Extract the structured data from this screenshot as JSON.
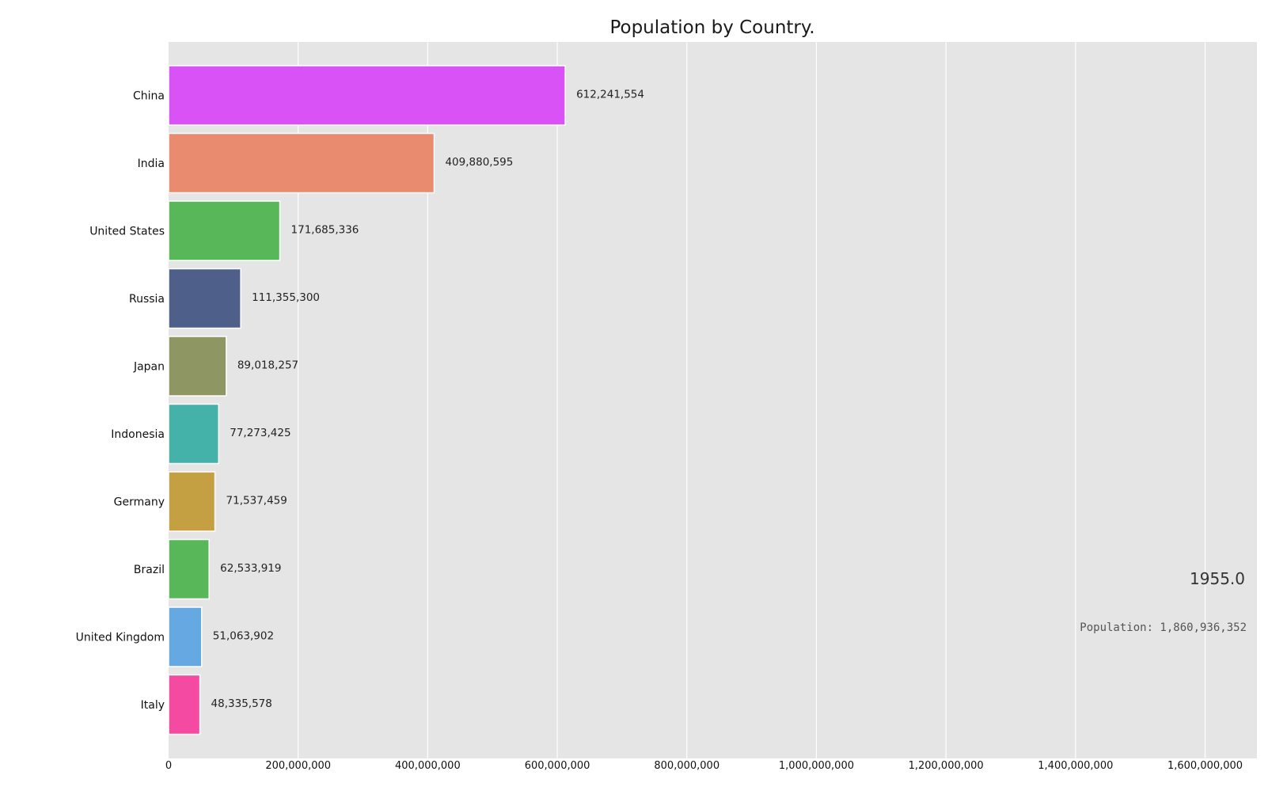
{
  "chart_data": {
    "type": "bar",
    "orientation": "horizontal",
    "title": "Population by Country.",
    "xlabel": "",
    "ylabel": "",
    "xlim": [
      0,
      1680000000
    ],
    "x_ticks": [
      0,
      200000000,
      400000000,
      600000000,
      800000000,
      1000000000,
      1200000000,
      1400000000,
      1600000000
    ],
    "x_tick_labels": [
      "0",
      "200,000,000",
      "400,000,000",
      "600,000,000",
      "800,000,000",
      "1,000,000,000",
      "1,200,000,000",
      "1,400,000,000",
      "1,600,000,000"
    ],
    "grid": true,
    "categories": [
      "China",
      "India",
      "United States",
      "Russia",
      "Japan",
      "Indonesia",
      "Germany",
      "Brazil",
      "United Kingdom",
      "Italy"
    ],
    "values": [
      612241554,
      409880595,
      171685336,
      111355300,
      89018257,
      77273425,
      71537459,
      62533919,
      51063902,
      48335578
    ],
    "value_labels": [
      "612,241,554",
      "409,880,595",
      "171,685,336",
      "111,355,300",
      "89,018,257",
      "77,273,425",
      "71,537,459",
      "62,533,919",
      "51,063,902",
      "48,335,578"
    ],
    "colors": [
      "#d852f5",
      "#e88b6f",
      "#58b859",
      "#4e6089",
      "#8e9763",
      "#44b2a8",
      "#c4a042",
      "#58b859",
      "#66a8e2",
      "#f44aa1"
    ],
    "annotations": {
      "year": "1955.0",
      "total": "Population: 1,860,936,352"
    }
  },
  "style": {
    "plot_background": "#e5e5e5",
    "grid_color": "#ffffff",
    "bar_edge_color": "#ffffff"
  }
}
